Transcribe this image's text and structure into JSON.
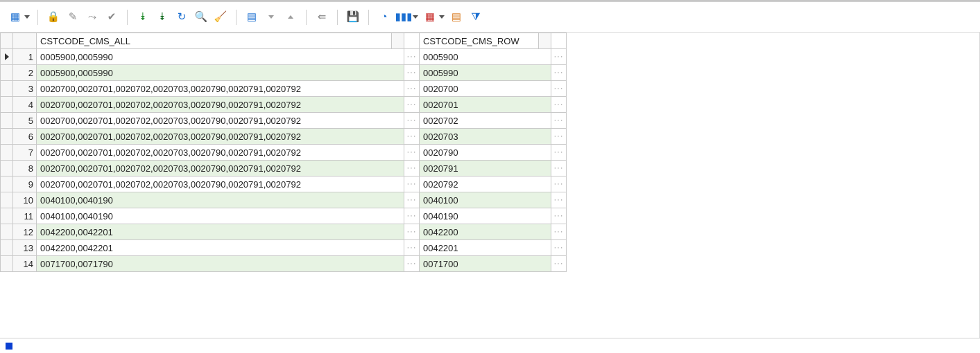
{
  "toolbar": {
    "icons": [
      {
        "name": "fit-columns-icon",
        "glyph": "▦",
        "cls": "blue",
        "interact": true,
        "dropdown": true
      },
      {
        "sep": true
      },
      {
        "name": "lock-icon",
        "glyph": "🔒",
        "cls": "red",
        "interact": true
      },
      {
        "name": "edit-cell-icon",
        "glyph": "✎",
        "cls": "gray",
        "interact": true
      },
      {
        "name": "post-edit-icon",
        "glyph": "⤳",
        "cls": "gray",
        "interact": true
      },
      {
        "name": "commit-icon",
        "glyph": "✔",
        "cls": "gray",
        "interact": true
      },
      {
        "sep": true
      },
      {
        "name": "fetch-all-icon",
        "glyph": "⯯",
        "cls": "green",
        "interact": true
      },
      {
        "name": "fetch-last-icon",
        "glyph": "⯯",
        "cls": "greenD",
        "interact": true
      },
      {
        "name": "refresh-icon",
        "glyph": "↻",
        "cls": "blue",
        "interact": true
      },
      {
        "name": "find-icon",
        "glyph": "🔍",
        "cls": "blue",
        "interact": true
      },
      {
        "name": "clear-icon",
        "glyph": "🧹",
        "cls": "gray",
        "interact": true
      },
      {
        "sep": true
      },
      {
        "name": "single-record-icon",
        "glyph": "▤",
        "cls": "blue",
        "interact": true
      },
      {
        "name": "collapse-icon",
        "glyph": "▽",
        "cls": "gray",
        "interact": false,
        "triUp": false
      },
      {
        "name": "expand-icon",
        "glyph": "△",
        "cls": "gray",
        "interact": false,
        "triUp": true
      },
      {
        "sep": true
      },
      {
        "name": "link-icon",
        "glyph": "⇚",
        "cls": "gray",
        "interact": true
      },
      {
        "sep": true
      },
      {
        "name": "save-icon",
        "glyph": "💾",
        "cls": "purple",
        "interact": true
      },
      {
        "sep": true
      },
      {
        "name": "chart-pie-icon",
        "glyph": "◔",
        "cls": "blue",
        "interact": true
      },
      {
        "name": "chart-bar-icon",
        "glyph": "▮▮▮",
        "cls": "blue",
        "interact": true,
        "dropdown": true
      },
      {
        "name": "grid-view-icon",
        "glyph": "▦",
        "cls": "red",
        "interact": true,
        "dropdown": true
      },
      {
        "name": "calc-icon",
        "glyph": "▤",
        "cls": "orange",
        "interact": true
      },
      {
        "name": "filter-icon",
        "glyph": "⧩",
        "cls": "blue",
        "interact": true
      }
    ]
  },
  "grid": {
    "columns": [
      {
        "key": "all",
        "label": "CSTCODE_CMS_ALL"
      },
      {
        "key": "row",
        "label": "CSTCODE_CMS_ROW"
      }
    ],
    "rows": [
      {
        "n": 1,
        "all": "0005900,0005990",
        "row": "0005900",
        "current": true
      },
      {
        "n": 2,
        "all": "0005900,0005990",
        "row": "0005990"
      },
      {
        "n": 3,
        "all": "0020700,0020701,0020702,0020703,0020790,0020791,0020792",
        "row": "0020700"
      },
      {
        "n": 4,
        "all": "0020700,0020701,0020702,0020703,0020790,0020791,0020792",
        "row": "0020701"
      },
      {
        "n": 5,
        "all": "0020700,0020701,0020702,0020703,0020790,0020791,0020792",
        "row": "0020702"
      },
      {
        "n": 6,
        "all": "0020700,0020701,0020702,0020703,0020790,0020791,0020792",
        "row": "0020703"
      },
      {
        "n": 7,
        "all": "0020700,0020701,0020702,0020703,0020790,0020791,0020792",
        "row": "0020790"
      },
      {
        "n": 8,
        "all": "0020700,0020701,0020702,0020703,0020790,0020791,0020792",
        "row": "0020791"
      },
      {
        "n": 9,
        "all": "0020700,0020701,0020702,0020703,0020790,0020791,0020792",
        "row": "0020792"
      },
      {
        "n": 10,
        "all": "0040100,0040190",
        "row": "0040100"
      },
      {
        "n": 11,
        "all": "0040100,0040190",
        "row": "0040190"
      },
      {
        "n": 12,
        "all": "0042200,0042201",
        "row": "0042200"
      },
      {
        "n": 13,
        "all": "0042200,0042201",
        "row": "0042201"
      },
      {
        "n": 14,
        "all": "0071700,0071790",
        "row": "0071700"
      }
    ],
    "ellipsis": "···"
  },
  "colors": {
    "alt_row_bg": "#e7f3e3",
    "border": "#c9c9c9",
    "toolbar_sep": "#d0d0d0"
  }
}
